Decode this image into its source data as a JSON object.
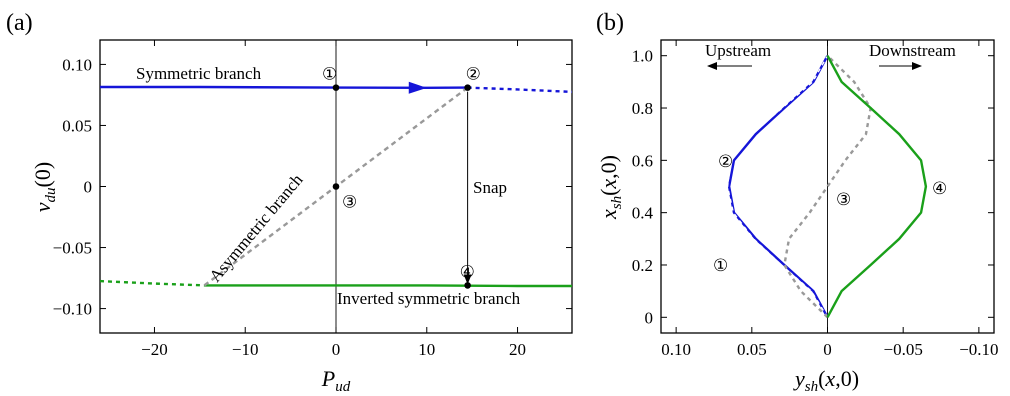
{
  "chart_data": [
    {
      "type": "line",
      "panel_label": "(a)",
      "xlabel": "P_ud",
      "ylabel": "v_du(0)",
      "xlim": [
        -26,
        26
      ],
      "ylim": [
        -0.12,
        0.12
      ],
      "xticks": [
        -20,
        -10,
        0,
        10,
        20
      ],
      "yticks": [
        -0.1,
        -0.05,
        0,
        0.05,
        0.1
      ],
      "xtick_labels": [
        "−20",
        "−10",
        "0",
        "10",
        "20"
      ],
      "ytick_labels": [
        "−0.10",
        "−0.05",
        "0",
        "0.05",
        "0.10"
      ],
      "grid": false,
      "colors": {
        "symmetric": "#1515d8",
        "inverted": "#1aa01a",
        "asymmetric": "#999999",
        "snap": "#000000"
      },
      "series": [
        {
          "name": "Symmetric branch",
          "style": "solid",
          "color": "#1515d8",
          "x": [
            -26,
            -15,
            0,
            10,
            14.5
          ],
          "y": [
            0.0815,
            0.0815,
            0.081,
            0.0808,
            0.081
          ]
        },
        {
          "style": "dotted",
          "color": "#1515d8",
          "x": [
            14.5,
            20,
            26
          ],
          "y": [
            0.081,
            0.0795,
            0.0775
          ]
        },
        {
          "name": "Inverted symmetric branch",
          "style": "solid",
          "color": "#1aa01a",
          "x": [
            -14.5,
            -5,
            0,
            10,
            20,
            26
          ],
          "y": [
            -0.081,
            -0.081,
            -0.081,
            -0.081,
            -0.0815,
            -0.0815
          ]
        },
        {
          "style": "dotted",
          "color": "#1aa01a",
          "x": [
            -26,
            -20,
            -14.5
          ],
          "y": [
            -0.0775,
            -0.0795,
            -0.081
          ]
        },
        {
          "name": "Asymmetric branch",
          "style": "dashed",
          "color": "#999999",
          "x": [
            -14.5,
            14.5
          ],
          "y": [
            -0.081,
            0.081
          ]
        }
      ],
      "vertical_line_x": 0,
      "points": [
        {
          "label": "①",
          "x": 0,
          "y": 0.081
        },
        {
          "label": "②",
          "x": 14.5,
          "y": 0.081
        },
        {
          "label": "③",
          "x": 0,
          "y": 0.0
        },
        {
          "label": "④",
          "x": 14.5,
          "y": -0.081
        }
      ],
      "annotations": [
        {
          "text": "Symmetric branch"
        },
        {
          "text": "Asymmetric branch"
        },
        {
          "text": "Snap"
        },
        {
          "text": "Inverted symmetric branch"
        }
      ],
      "arrows": [
        {
          "from": [
            5,
            0.081
          ],
          "to": [
            10,
            0.0808
          ],
          "color": "#1515d8"
        },
        {
          "from": [
            14.5,
            0.081
          ],
          "to": [
            14.5,
            -0.081
          ],
          "color": "#000000"
        }
      ]
    },
    {
      "type": "line",
      "panel_label": "(b)",
      "xlabel": "y_sh(x,0)",
      "ylabel": "x_sh(x,0)",
      "xlim": [
        0.11,
        -0.11
      ],
      "ylim": [
        -0.06,
        1.06
      ],
      "xticks": [
        0.1,
        0.05,
        0,
        -0.05,
        -0.1
      ],
      "yticks": [
        0,
        0.2,
        0.4,
        0.6,
        0.8,
        1.0
      ],
      "xtick_labels": [
        "0.10",
        "0.05",
        "0",
        "−0.05",
        "−0.10"
      ],
      "ytick_labels": [
        "0",
        "0.2",
        "0.4",
        "0.6",
        "0.8",
        "1.0"
      ],
      "grid": false,
      "series": [
        {
          "label": "①",
          "style": "solid",
          "color": "#1515d8",
          "x": [
            0,
            0.0093,
            0.0285,
            0.0474,
            0.0618,
            0.065,
            0.0618,
            0.0474,
            0.0285,
            0.0093,
            0
          ],
          "y": [
            0,
            0.1,
            0.2,
            0.3,
            0.4,
            0.5,
            0.6,
            0.7,
            0.8,
            0.9,
            1.0
          ]
        },
        {
          "label": "②",
          "style": "dotted",
          "color": "#ffffff",
          "x": [
            0,
            0.0106,
            0.0305,
            0.0489,
            0.0622,
            0.066,
            0.064,
            0.0502,
            0.03,
            0.0098,
            0
          ],
          "y": [
            0,
            0.1,
            0.2,
            0.3,
            0.4,
            0.5,
            0.6,
            0.7,
            0.8,
            0.9,
            1.0
          ]
        },
        {
          "label": "③",
          "style": "dotted",
          "color": "#999999",
          "x": [
            0,
            0.0176,
            0.0285,
            0.0254,
            0.0118,
            0,
            -0.0118,
            -0.0254,
            -0.0285,
            -0.0176,
            0
          ],
          "y": [
            0,
            0.1,
            0.2,
            0.3,
            0.4,
            0.5,
            0.6,
            0.7,
            0.8,
            0.9,
            1.0
          ]
        },
        {
          "label": "④",
          "style": "solid",
          "color": "#1aa01a",
          "x": [
            0,
            -0.0093,
            -0.0285,
            -0.0474,
            -0.0618,
            -0.065,
            -0.0618,
            -0.0474,
            -0.0285,
            -0.0093,
            0
          ],
          "y": [
            0,
            0.1,
            0.2,
            0.3,
            0.4,
            0.5,
            0.6,
            0.7,
            0.8,
            0.9,
            1.0
          ]
        }
      ],
      "vertical_line_x": 0,
      "annotations": [
        {
          "text": "Upstream"
        },
        {
          "text": "Downstream"
        }
      ],
      "curve_labels": [
        {
          "label": "①"
        },
        {
          "label": "②"
        },
        {
          "label": "③"
        },
        {
          "label": "④"
        }
      ]
    }
  ]
}
